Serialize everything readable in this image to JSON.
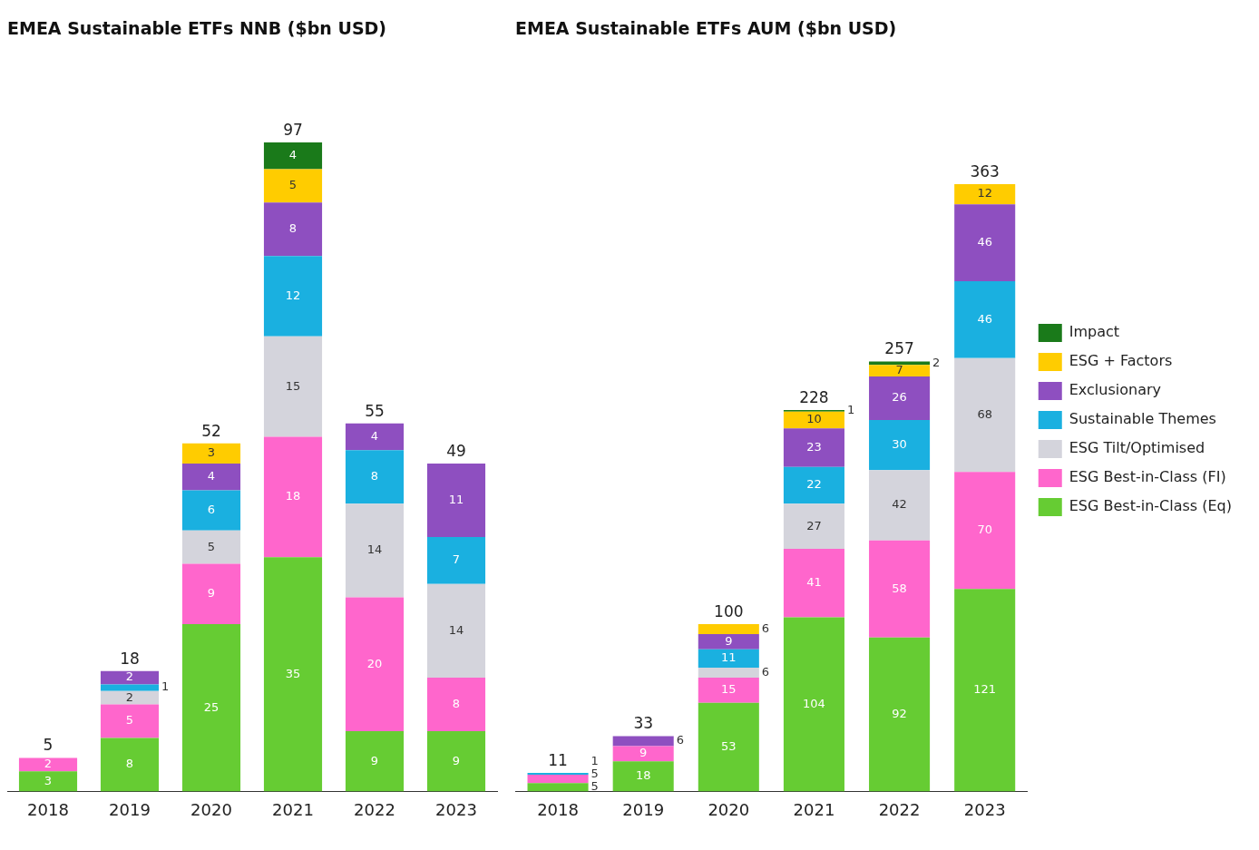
{
  "chart_data": [
    {
      "type": "bar",
      "title": "EMEA Sustainable ETFs NNB ($bn USD)",
      "categories": [
        "2018",
        "2019",
        "2020",
        "2021",
        "2022",
        "2023"
      ],
      "stacked": true,
      "legend": false,
      "data_labels": true,
      "totals": [
        "5",
        "18",
        "52",
        "97",
        "55",
        "49"
      ],
      "series": [
        {
          "color": "#66cc33",
          "values": [
            3,
            8,
            25,
            35,
            9,
            9
          ]
        },
        {
          "color": "#ff66cc",
          "values": [
            2,
            5,
            9,
            18,
            20,
            8
          ]
        },
        {
          "color": "#d4d4dc",
          "values": [
            null,
            2,
            5,
            15,
            14,
            14
          ]
        },
        {
          "color": "#1ab0e0",
          "values": [
            null,
            1,
            6,
            12,
            8,
            7
          ]
        },
        {
          "color": "#8e4fc0",
          "values": [
            null,
            2,
            4,
            8,
            4,
            11
          ]
        },
        {
          "color": "#ffcc00",
          "values": [
            null,
            null,
            3,
            5,
            null,
            null
          ]
        },
        {
          "color": "#1a7a1a",
          "values": [
            null,
            null,
            null,
            4,
            null,
            null
          ]
        }
      ]
    },
    {
      "type": "bar",
      "title": "EMEA Sustainable ETFs AUM ($bn USD)",
      "categories": [
        "2018",
        "2019",
        "2020",
        "2021",
        "2022",
        "2023"
      ],
      "stacked": true,
      "legend": "right",
      "data_labels": true,
      "totals": [
        "11",
        "33",
        "100",
        "228",
        "257",
        "363"
      ],
      "series": [
        {
          "name": "ESG Best-in-Class (Eq)",
          "color": "#66cc33",
          "values": [
            5,
            18,
            53,
            104,
            92,
            121
          ]
        },
        {
          "name": "ESG Best-in-Class (FI)",
          "color": "#ff66cc",
          "values": [
            5,
            9,
            15,
            41,
            58,
            70
          ]
        },
        {
          "name": "ESG Tilt/Optimised",
          "color": "#d4d4dc",
          "values": [
            null,
            null,
            6,
            27,
            42,
            68
          ]
        },
        {
          "name": "Sustainable Themes",
          "color": "#1ab0e0",
          "values": [
            1,
            null,
            11,
            22,
            30,
            46
          ]
        },
        {
          "name": "Exclusionary",
          "color": "#8e4fc0",
          "values": [
            null,
            6,
            9,
            23,
            26,
            46
          ]
        },
        {
          "name": "ESG + Factors",
          "color": "#ffcc00",
          "values": [
            null,
            null,
            6,
            10,
            7,
            12
          ]
        },
        {
          "name": "Impact",
          "color": "#1a7a1a",
          "values": [
            null,
            null,
            null,
            1,
            2,
            null
          ]
        }
      ]
    }
  ]
}
